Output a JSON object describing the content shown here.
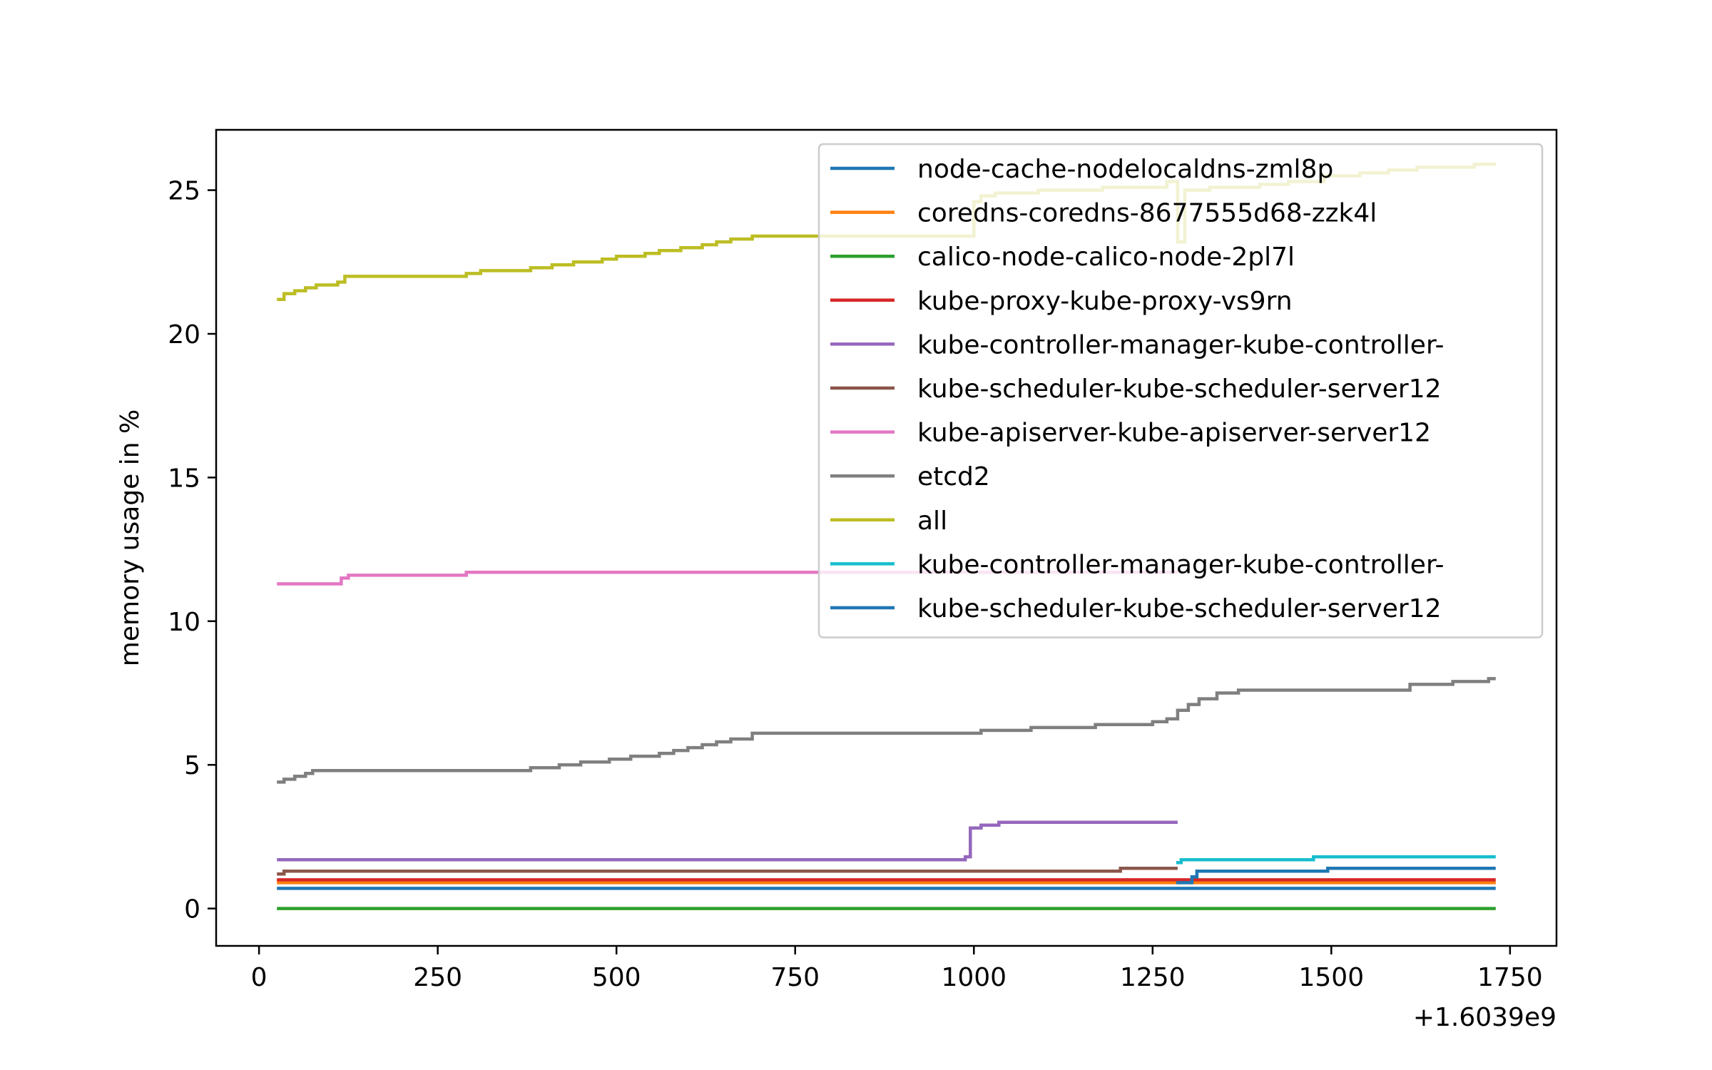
{
  "chart_data": {
    "type": "line",
    "title": "",
    "xlabel": "",
    "ylabel": "memory usage in %",
    "x_offset_label": "+1.6039e9",
    "xlim": [
      -60,
      1815
    ],
    "ylim": [
      -1.3,
      27.1
    ],
    "x_ticks": [
      0,
      250,
      500,
      750,
      1000,
      1250,
      1500,
      1750
    ],
    "y_ticks": [
      0,
      5,
      10,
      15,
      20,
      25
    ],
    "x_tick_labels": [
      "0",
      "250",
      "500",
      "750",
      "1000",
      "1250",
      "1500",
      "1750"
    ],
    "y_tick_labels": [
      "0",
      "5",
      "10",
      "15",
      "20",
      "25"
    ],
    "grid": false,
    "legend_position": "top-right",
    "series": [
      {
        "name": "node-cache-nodelocaldns-zml8p",
        "color": "#1f77b4",
        "points": [
          [
            25,
            0.7
          ],
          [
            1730,
            0.7
          ]
        ]
      },
      {
        "name": "coredns-coredns-8677555d68-zzk4l",
        "color": "#ff7f0e",
        "points": [
          [
            25,
            0.9
          ],
          [
            1730,
            0.9
          ]
        ]
      },
      {
        "name": "calico-node-calico-node-2pl7l",
        "color": "#2ca02c",
        "points": [
          [
            25,
            0.0
          ],
          [
            1730,
            0.0
          ]
        ]
      },
      {
        "name": "kube-proxy-kube-proxy-vs9rn",
        "color": "#d62728",
        "points": [
          [
            25,
            1.0
          ],
          [
            1730,
            1.0
          ]
        ]
      },
      {
        "name": "kube-controller-manager-kube-controller-",
        "color": "#9467bd",
        "points": [
          [
            25,
            1.7
          ],
          [
            980,
            1.7
          ],
          [
            988,
            1.8
          ],
          [
            995,
            2.8
          ],
          [
            1010,
            2.9
          ],
          [
            1035,
            3.0
          ],
          [
            1285,
            3.0
          ]
        ]
      },
      {
        "name": "kube-scheduler-kube-scheduler-server12",
        "color": "#8c564b",
        "points": [
          [
            25,
            1.2
          ],
          [
            35,
            1.3
          ],
          [
            1200,
            1.3
          ],
          [
            1205,
            1.4
          ],
          [
            1285,
            1.4
          ]
        ]
      },
      {
        "name": "kube-apiserver-kube-apiserver-server12",
        "color": "#e377c2",
        "points": [
          [
            25,
            11.3
          ],
          [
            105,
            11.3
          ],
          [
            115,
            11.5
          ],
          [
            125,
            11.6
          ],
          [
            285,
            11.6
          ],
          [
            290,
            11.7
          ],
          [
            1285,
            11.7
          ]
        ]
      },
      {
        "name": "etcd2",
        "color": "#7f7f7f",
        "points": [
          [
            25,
            4.4
          ],
          [
            35,
            4.5
          ],
          [
            50,
            4.6
          ],
          [
            65,
            4.7
          ],
          [
            75,
            4.8
          ],
          [
            310,
            4.8
          ],
          [
            380,
            4.9
          ],
          [
            420,
            5.0
          ],
          [
            450,
            5.1
          ],
          [
            490,
            5.2
          ],
          [
            520,
            5.3
          ],
          [
            560,
            5.4
          ],
          [
            580,
            5.5
          ],
          [
            600,
            5.6
          ],
          [
            620,
            5.7
          ],
          [
            640,
            5.8
          ],
          [
            660,
            5.9
          ],
          [
            690,
            6.1
          ],
          [
            1010,
            6.2
          ],
          [
            1080,
            6.3
          ],
          [
            1170,
            6.4
          ],
          [
            1250,
            6.5
          ],
          [
            1270,
            6.6
          ],
          [
            1285,
            6.9
          ],
          [
            1300,
            7.1
          ],
          [
            1315,
            7.3
          ],
          [
            1340,
            7.5
          ],
          [
            1370,
            7.6
          ],
          [
            1600,
            7.6
          ],
          [
            1610,
            7.8
          ],
          [
            1670,
            7.9
          ],
          [
            1720,
            8.0
          ],
          [
            1730,
            8.0
          ]
        ]
      },
      {
        "name": "all",
        "color": "#bcbd22",
        "points": [
          [
            25,
            21.2
          ],
          [
            35,
            21.4
          ],
          [
            50,
            21.5
          ],
          [
            65,
            21.6
          ],
          [
            80,
            21.7
          ],
          [
            110,
            21.8
          ],
          [
            120,
            22.0
          ],
          [
            280,
            22.0
          ],
          [
            290,
            22.1
          ],
          [
            310,
            22.2
          ],
          [
            380,
            22.3
          ],
          [
            410,
            22.4
          ],
          [
            440,
            22.5
          ],
          [
            480,
            22.6
          ],
          [
            500,
            22.7
          ],
          [
            540,
            22.8
          ],
          [
            560,
            22.9
          ],
          [
            590,
            23.0
          ],
          [
            620,
            23.1
          ],
          [
            640,
            23.2
          ],
          [
            660,
            23.3
          ],
          [
            690,
            23.4
          ],
          [
            990,
            23.4
          ],
          [
            1000,
            24.6
          ],
          [
            1010,
            24.8
          ],
          [
            1030,
            24.9
          ],
          [
            1090,
            25.0
          ],
          [
            1180,
            25.1
          ],
          [
            1270,
            25.3
          ],
          [
            1285,
            23.2
          ],
          [
            1295,
            25.0
          ],
          [
            1330,
            25.1
          ],
          [
            1400,
            25.2
          ],
          [
            1440,
            25.3
          ],
          [
            1490,
            25.5
          ],
          [
            1540,
            25.6
          ],
          [
            1580,
            25.7
          ],
          [
            1620,
            25.8
          ],
          [
            1680,
            25.8
          ],
          [
            1700,
            25.9
          ],
          [
            1730,
            25.9
          ]
        ]
      },
      {
        "name": "kube-controller-manager-kube-controller-",
        "color": "#17becf",
        "points": [
          [
            1283,
            1.6
          ],
          [
            1290,
            1.7
          ],
          [
            1470,
            1.7
          ],
          [
            1475,
            1.8
          ],
          [
            1730,
            1.8
          ]
        ]
      },
      {
        "name": "kube-scheduler-kube-scheduler-server12",
        "color": "#1f77b4",
        "points": [
          [
            1283,
            0.9
          ],
          [
            1300,
            0.9
          ],
          [
            1305,
            1.1
          ],
          [
            1312,
            1.3
          ],
          [
            1490,
            1.3
          ],
          [
            1495,
            1.4
          ],
          [
            1730,
            1.4
          ]
        ]
      }
    ]
  }
}
